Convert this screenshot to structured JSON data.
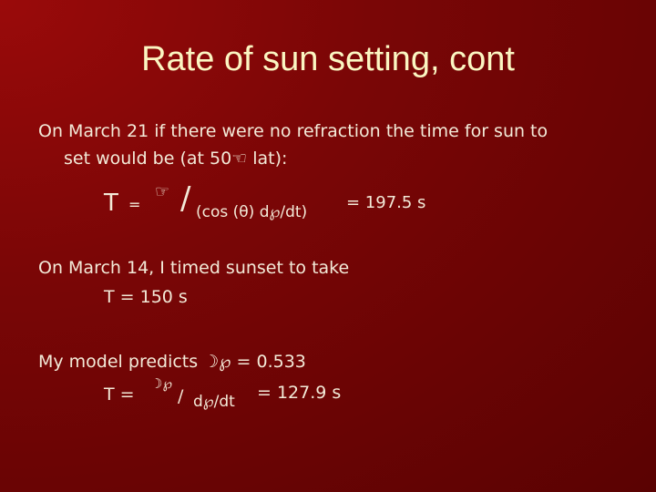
{
  "slide": {
    "title": "Rate of sun setting, cont",
    "para1": {
      "lines": [
        "On March 21 if there were no refraction the time for sun to",
        "set would be (at 50☜ lat):"
      ]
    },
    "formula1": {
      "t": "T",
      "eq": "=",
      "sym": "☞",
      "slash": "/",
      "denom": "(cos (θ) d℘/dt)",
      "result": "= 197.5 s"
    },
    "para2": {
      "lines": [
        "On March 14, I timed sunset to take",
        "T = 150 s"
      ]
    },
    "para3": {
      "line": "My model predicts ☽℘ = 0.533"
    },
    "formula2": {
      "t": "T =",
      "num": "☽℘",
      "slash": "/",
      "denom": "d℘/dt",
      "result": "= 127.9 s"
    }
  }
}
